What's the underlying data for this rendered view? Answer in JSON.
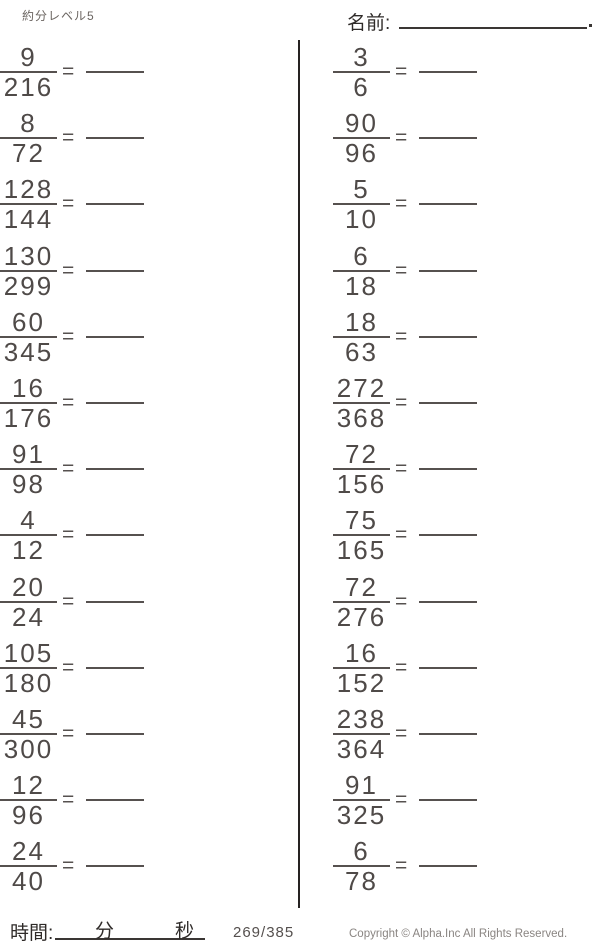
{
  "header": {
    "worksheet_title": "約分レベル5",
    "name_label": "名前:"
  },
  "worksheet": {
    "equals_sign": "=",
    "columns": [
      {
        "problems": [
          {
            "numerator": "9",
            "denominator": "216"
          },
          {
            "numerator": "8",
            "denominator": "72"
          },
          {
            "numerator": "128",
            "denominator": "144"
          },
          {
            "numerator": "130",
            "denominator": "299"
          },
          {
            "numerator": "60",
            "denominator": "345"
          },
          {
            "numerator": "16",
            "denominator": "176"
          },
          {
            "numerator": "91",
            "denominator": "98"
          },
          {
            "numerator": "4",
            "denominator": "12"
          },
          {
            "numerator": "20",
            "denominator": "24"
          },
          {
            "numerator": "105",
            "denominator": "180"
          },
          {
            "numerator": "45",
            "denominator": "300"
          },
          {
            "numerator": "12",
            "denominator": "96"
          },
          {
            "numerator": "24",
            "denominator": "40"
          }
        ]
      },
      {
        "problems": [
          {
            "numerator": "3",
            "denominator": "6"
          },
          {
            "numerator": "90",
            "denominator": "96"
          },
          {
            "numerator": "5",
            "denominator": "10"
          },
          {
            "numerator": "6",
            "denominator": "18"
          },
          {
            "numerator": "18",
            "denominator": "63"
          },
          {
            "numerator": "272",
            "denominator": "368"
          },
          {
            "numerator": "72",
            "denominator": "156"
          },
          {
            "numerator": "75",
            "denominator": "165"
          },
          {
            "numerator": "72",
            "denominator": "276"
          },
          {
            "numerator": "16",
            "denominator": "152"
          },
          {
            "numerator": "238",
            "denominator": "364"
          },
          {
            "numerator": "91",
            "denominator": "325"
          },
          {
            "numerator": "6",
            "denominator": "78"
          }
        ]
      }
    ]
  },
  "footer": {
    "time_label": "時間:",
    "minutes_label": "分",
    "seconds_label": "秒",
    "page_number": "269/385",
    "copyright": "Copyright ©  Alpha.Inc All Rights Reserved."
  },
  "colors": {
    "ink": "#4f4a48",
    "line": "#56514f",
    "divider": "#262322",
    "muted": "#8a8582"
  }
}
